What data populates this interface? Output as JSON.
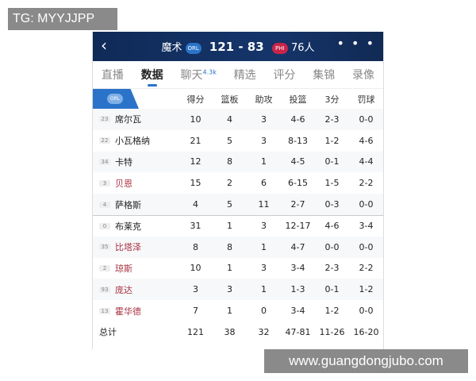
{
  "overlay": {
    "tg": "TG: MYYJJPP",
    "site": "www.guangdongjubo.com"
  },
  "header": {
    "back": "‹",
    "home": "魔术",
    "home_logo": "ORL",
    "score": "121 - 83",
    "away_logo": "PHI",
    "away": "76人",
    "more": "• • •"
  },
  "tabs": [
    {
      "label": "直播"
    },
    {
      "label": "数据",
      "active": true
    },
    {
      "label": "聊天",
      "badge": "4.3k"
    },
    {
      "label": "精选"
    },
    {
      "label": "评分"
    },
    {
      "label": "集锦"
    },
    {
      "label": "录像"
    }
  ],
  "table": {
    "logo": "ORL",
    "columns": [
      "得分",
      "篮板",
      "助攻",
      "投篮",
      "3分",
      "罚球"
    ],
    "rows": [
      {
        "no": "23",
        "name": "席尔瓦",
        "stats": [
          "10",
          "4",
          "3",
          "4-6",
          "2-3",
          "0-0"
        ]
      },
      {
        "no": "22",
        "name": "小瓦格纳",
        "stats": [
          "21",
          "5",
          "3",
          "8-13",
          "1-2",
          "4-6"
        ]
      },
      {
        "no": "34",
        "name": "卡特",
        "stats": [
          "12",
          "8",
          "1",
          "4-5",
          "0-1",
          "4-4"
        ]
      },
      {
        "no": "3",
        "name": "贝恩",
        "stats": [
          "15",
          "2",
          "6",
          "6-15",
          "1-5",
          "2-2"
        ],
        "red": true
      },
      {
        "no": "4",
        "name": "萨格斯",
        "stats": [
          "4",
          "5",
          "11",
          "2-7",
          "0-3",
          "0-0"
        ]
      },
      {
        "no": "0",
        "name": "布莱克",
        "stats": [
          "31",
          "1",
          "3",
          "12-17",
          "4-6",
          "3-4"
        ]
      },
      {
        "no": "35",
        "name": "比塔泽",
        "stats": [
          "8",
          "8",
          "1",
          "4-7",
          "0-0",
          "0-0"
        ],
        "red": true
      },
      {
        "no": "2",
        "name": "琼斯",
        "stats": [
          "10",
          "1",
          "3",
          "3-4",
          "2-3",
          "2-2"
        ],
        "red": true
      },
      {
        "no": "93",
        "name": "庞达",
        "stats": [
          "3",
          "3",
          "1",
          "1-3",
          "0-1",
          "1-2"
        ],
        "red": true
      },
      {
        "no": "13",
        "name": "霍华德",
        "stats": [
          "7",
          "1",
          "0",
          "3-4",
          "1-2",
          "0-0"
        ],
        "red": true
      }
    ],
    "total": {
      "label": "总计",
      "stats": [
        "121",
        "38",
        "32",
        "47-81",
        "11-26",
        "16-20"
      ]
    }
  },
  "colors": {
    "header": "#0f2a57",
    "accent": "#2a73c9",
    "bench_name": "#a83243"
  }
}
